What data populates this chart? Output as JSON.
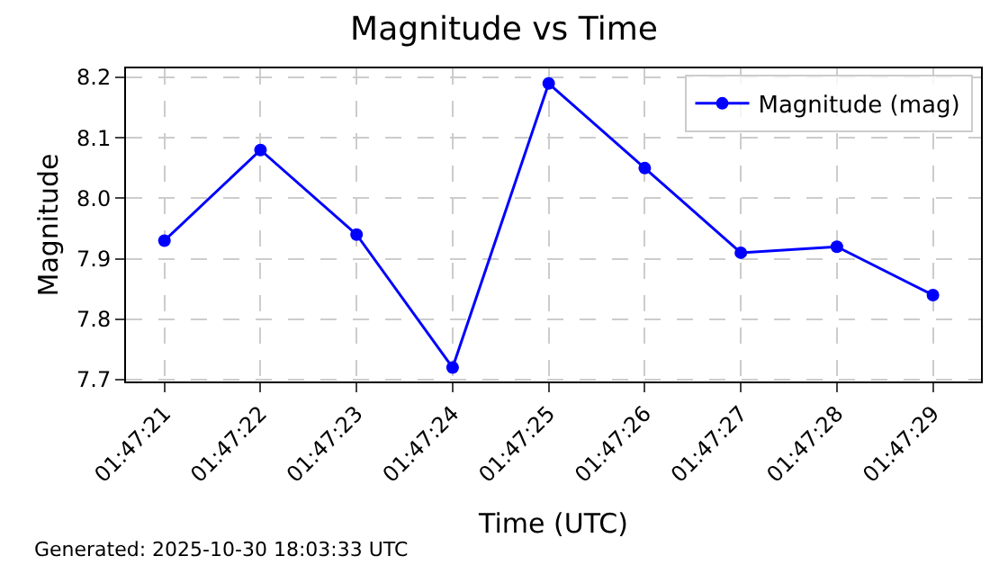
{
  "chart_data": {
    "type": "line",
    "title": "Magnitude vs Time",
    "xlabel": "Time (UTC)",
    "ylabel": "Magnitude",
    "categories": [
      "01:47:21",
      "01:47:22",
      "01:47:23",
      "01:47:24",
      "01:47:25",
      "01:47:26",
      "01:47:27",
      "01:47:28",
      "01:47:29"
    ],
    "series": [
      {
        "name": "Magnitude (mag)",
        "color": "#0000ff",
        "values": [
          7.93,
          8.08,
          7.94,
          7.72,
          8.19,
          8.05,
          7.91,
          7.92,
          7.84
        ]
      }
    ],
    "ylim": [
      7.697,
      8.215
    ],
    "yticks": [
      7.7,
      7.8,
      7.9,
      {
        "value": 8.0,
        "label": "8.0"
      },
      8.1,
      8.2
    ],
    "grid": true,
    "legend": "top right",
    "marker": "circle",
    "line_style": "solid",
    "annotations": [
      "Generated: 2025-10-30 18:03:33 UTC"
    ]
  }
}
